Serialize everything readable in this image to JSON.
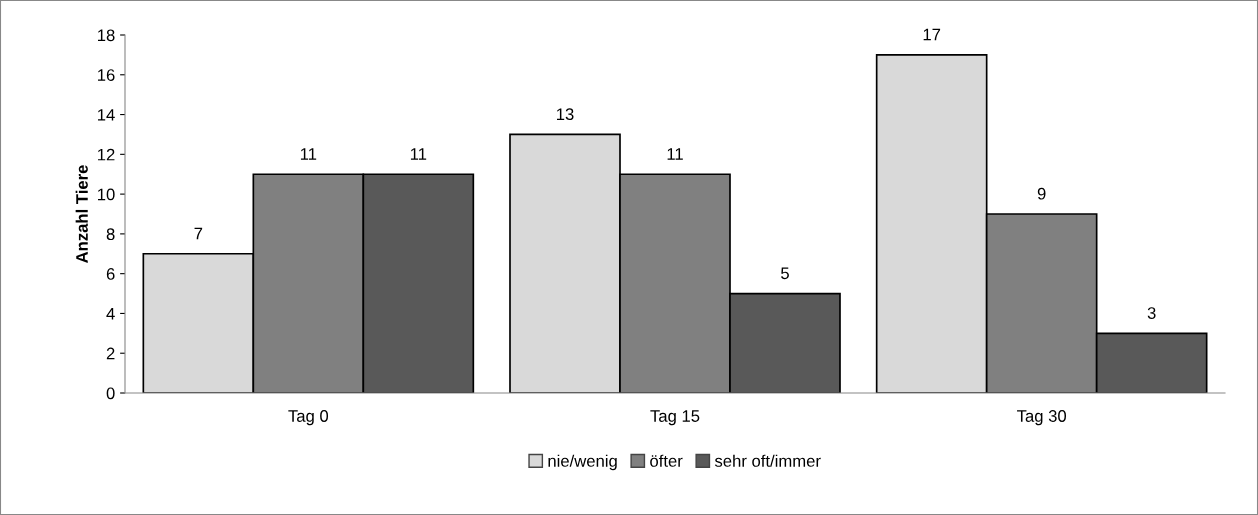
{
  "chart_data": {
    "type": "bar",
    "ylabel": "Anzahl Tiere",
    "categories": [
      "Tag 0",
      "Tag 15",
      "Tag 30"
    ],
    "series": [
      {
        "name": "nie/wenig",
        "color": "#d9d9d9",
        "values": [
          7,
          13,
          17
        ]
      },
      {
        "name": "öfter",
        "color": "#808080",
        "values": [
          11,
          11,
          9
        ]
      },
      {
        "name": "sehr oft/immer",
        "color": "#595959",
        "values": [
          11,
          5,
          3
        ]
      }
    ],
    "ylim": [
      0,
      18
    ],
    "yticks": [
      0,
      2,
      4,
      6,
      8,
      10,
      12,
      14,
      16,
      18
    ],
    "grid": false,
    "legend": "bottom",
    "data_labels": true
  }
}
